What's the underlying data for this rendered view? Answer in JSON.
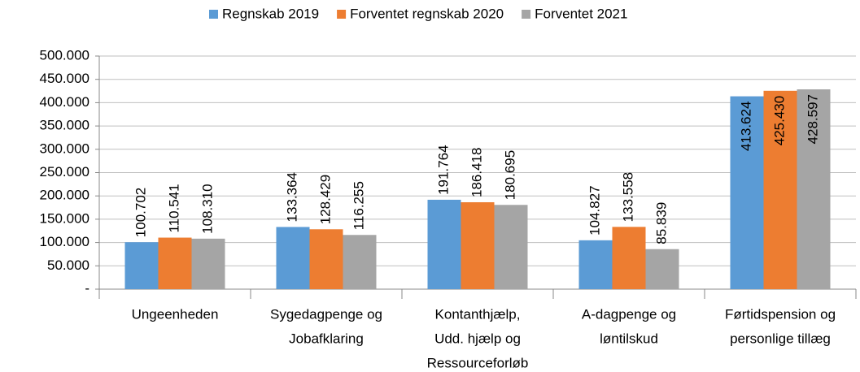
{
  "chart_data": {
    "type": "bar",
    "categories": [
      [
        "Ungeenheden"
      ],
      [
        "Sygedagpenge og",
        "Jobafklaring"
      ],
      [
        "Kontanthjælp,",
        "Udd. hjælp og",
        "Ressourceforløb"
      ],
      [
        "A-dagpenge og",
        "løntilskud"
      ],
      [
        "Førtidspension og",
        "personlige tillæg"
      ]
    ],
    "series": [
      {
        "name": "Regnskab 2019",
        "color": "#5b9bd5",
        "values": [
          100702,
          133364,
          191764,
          104827,
          413624
        ],
        "value_labels": [
          "100.702",
          "133.364",
          "191.764",
          "104.827",
          "413.624"
        ]
      },
      {
        "name": "Forventet regnskab 2020",
        "color": "#ed7d31",
        "values": [
          110541,
          128429,
          186418,
          133558,
          425430
        ],
        "value_labels": [
          "110.541",
          "128.429",
          "186.418",
          "133.558",
          "425.430"
        ]
      },
      {
        "name": "Forventet 2021",
        "color": "#a5a5a5",
        "values": [
          108310,
          116255,
          180695,
          85839,
          428597
        ],
        "value_labels": [
          "108.310",
          "116.255",
          "180.695",
          "85.839",
          "428.597"
        ]
      }
    ],
    "ylim": [
      0,
      500000
    ],
    "yticks": [
      {
        "value": 0,
        "label": "-"
      },
      {
        "value": 50000,
        "label": "50.000"
      },
      {
        "value": 100000,
        "label": "100.000"
      },
      {
        "value": 150000,
        "label": "150.000"
      },
      {
        "value": 200000,
        "label": "200.000"
      },
      {
        "value": 250000,
        "label": "250.000"
      },
      {
        "value": 300000,
        "label": "300.000"
      },
      {
        "value": 350000,
        "label": "350.000"
      },
      {
        "value": 400000,
        "label": "400.000"
      },
      {
        "value": 450000,
        "label": "450.000"
      },
      {
        "value": 500000,
        "label": "500.000"
      }
    ],
    "grid": true,
    "legend": "top"
  }
}
